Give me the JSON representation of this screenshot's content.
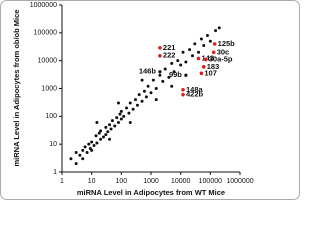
{
  "chart_data": {
    "type": "scatter",
    "xlabel": "miRNA Level in Adipocytes from WT Mice",
    "ylabel": "miRNA Level in Adipocytes from ob/ob Mice",
    "xscale": "log",
    "yscale": "log",
    "xlim": [
      1,
      1000000
    ],
    "ylim": [
      1,
      1000000
    ],
    "xticks": [
      1,
      10,
      100,
      1000,
      10000,
      100000,
      1000000
    ],
    "yticks": [
      1,
      10,
      100,
      1000,
      10000,
      100000,
      1000000
    ],
    "color": "#111111",
    "x": [
      2,
      3,
      3,
      4,
      5,
      5,
      6,
      7,
      8,
      9,
      10,
      10,
      12,
      14,
      15,
      18,
      20,
      20,
      25,
      30,
      30,
      35,
      40,
      45,
      50,
      60,
      70,
      80,
      90,
      100,
      100,
      120,
      150,
      180,
      200,
      250,
      300,
      350,
      400,
      500,
      600,
      700,
      800,
      1000,
      1200,
      1500,
      2000,
      2500,
      3000,
      4000,
      5000,
      6000,
      8000,
      10000,
      12000,
      15000,
      20000,
      25000,
      30000,
      40000,
      50000,
      60000,
      80000,
      100000,
      150000,
      200000,
      15,
      40,
      80,
      200,
      500,
      1500,
      5000
    ],
    "y": [
      3,
      2,
      5,
      4,
      6,
      3,
      8,
      5,
      10,
      7,
      12,
      6,
      9,
      20,
      11,
      25,
      15,
      30,
      18,
      40,
      22,
      28,
      50,
      35,
      70,
      45,
      90,
      60,
      120,
      80,
      150,
      100,
      200,
      130,
      300,
      180,
      400,
      250,
      600,
      350,
      800,
      500,
      1200,
      700,
      2000,
      1000,
      3000,
      1800,
      5000,
      2500,
      8000,
      4000,
      10000,
      7000,
      20000,
      9000,
      25000,
      15000,
      40000,
      20000,
      60000,
      35000,
      80000,
      50000,
      120000,
      150000,
      60,
      15,
      300,
      60,
      2000,
      400,
      1200
    ],
    "highlights": {
      "color": "#e02020",
      "labels": [
        "221",
        "222",
        "125b",
        "30c",
        "143",
        "30a-5p",
        "183",
        "107",
        "148a",
        "422b"
      ],
      "x": [
        2000,
        2000,
        140000,
        130000,
        40000,
        70000,
        60000,
        50000,
        12000,
        12000
      ],
      "y": [
        29000,
        15000,
        40000,
        20000,
        12000,
        11000,
        6000,
        3500,
        900,
        600
      ]
    },
    "annotations": {
      "labels": [
        "146b",
        "99b"
      ],
      "x": [
        2000,
        15000
      ],
      "y": [
        4000,
        3000
      ]
    }
  }
}
